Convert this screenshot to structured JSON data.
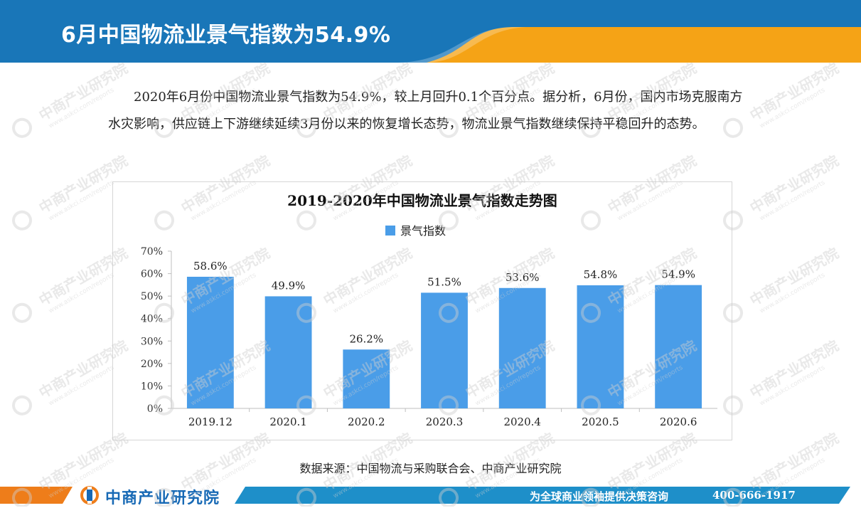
{
  "header": {
    "title": "6月中国物流业景气指数为54.9%",
    "color_primary": "#1976b8",
    "color_accent": "#f5a316"
  },
  "intro": {
    "paragraph": "2020年6月份中国物流业景气指数为54.9%，较上月回升0.1个百分点。据分析，6月份，国内市场克服南方水灾影响，供应链上下游继续延续3月份以来的恢复增长态势，物流业景气指数继续保持平稳回升的态势。"
  },
  "chart_data": {
    "type": "bar",
    "title": "2019-2020年中国物流业景气指数走势图",
    "legend": [
      "景气指数"
    ],
    "legend_position": "top",
    "categories": [
      "2019.12",
      "2020.1",
      "2020.2",
      "2020.3",
      "2020.4",
      "2020.5",
      "2020.6"
    ],
    "series": [
      {
        "name": "景气指数",
        "values": [
          58.6,
          49.9,
          26.2,
          51.5,
          53.6,
          54.8,
          54.9
        ],
        "labels": [
          "58.6%",
          "49.9%",
          "26.2%",
          "51.5%",
          "53.6%",
          "54.8%",
          "54.9%"
        ],
        "color": "#4a9de8"
      }
    ],
    "yticks": [
      "0%",
      "10%",
      "20%",
      "30%",
      "40%",
      "50%",
      "60%",
      "70%"
    ],
    "ylim": [
      0,
      70
    ],
    "grid": false
  },
  "source": {
    "text": "数据来源：中国物流与采购联合会、中商产业研究院"
  },
  "footer": {
    "brand": "中商产业研究院",
    "slogan": "为全球商业领袖提供决策咨询",
    "phone": "400-666-1917",
    "color_orange": "#ee7d1a",
    "color_blue": "#1e8fc9"
  },
  "watermark": {
    "text": "中商产业研究院",
    "sub": "www.askci.com/reports"
  }
}
